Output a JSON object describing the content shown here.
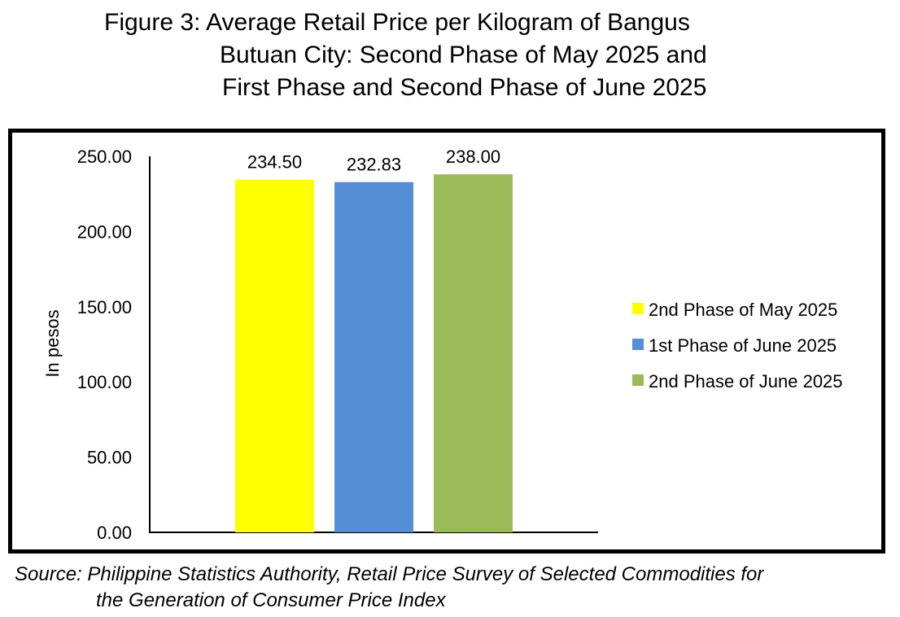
{
  "title": {
    "line1": "Figure 3: Average Retail Price per Kilogram of Bangus",
    "line2": "Butuan City: Second Phase of May 2025 and",
    "line3": "First Phase and Second Phase of June 2025"
  },
  "source": {
    "line1": "Source: Philippine Statistics Authority, Retail Price Survey of Selected Commodities for",
    "line2": "the Generation of Consumer Price Index"
  },
  "chart_data": {
    "type": "bar",
    "title": "Figure 3: Average Retail Price per Kilogram of Bangus Butuan City: Second Phase of May 2025 and First Phase and Second Phase of June 2025",
    "xlabel": "",
    "ylabel": "In pesos",
    "ylim": [
      0,
      250
    ],
    "yticks": [
      "0.00",
      "50.00",
      "100.00",
      "150.00",
      "200.00",
      "250.00"
    ],
    "grid": false,
    "legend_position": "right",
    "series": [
      {
        "name": "2nd Phase of May 2025",
        "values": [
          234.5
        ],
        "label": "234.50",
        "color": "#FFFF00"
      },
      {
        "name": "1st Phase of June 2025",
        "values": [
          232.83
        ],
        "label": "232.83",
        "color": "#558ED5"
      },
      {
        "name": "2nd Phase of June 2025",
        "values": [
          238.0
        ],
        "label": "238.00",
        "color": "#9BBB59"
      }
    ]
  }
}
